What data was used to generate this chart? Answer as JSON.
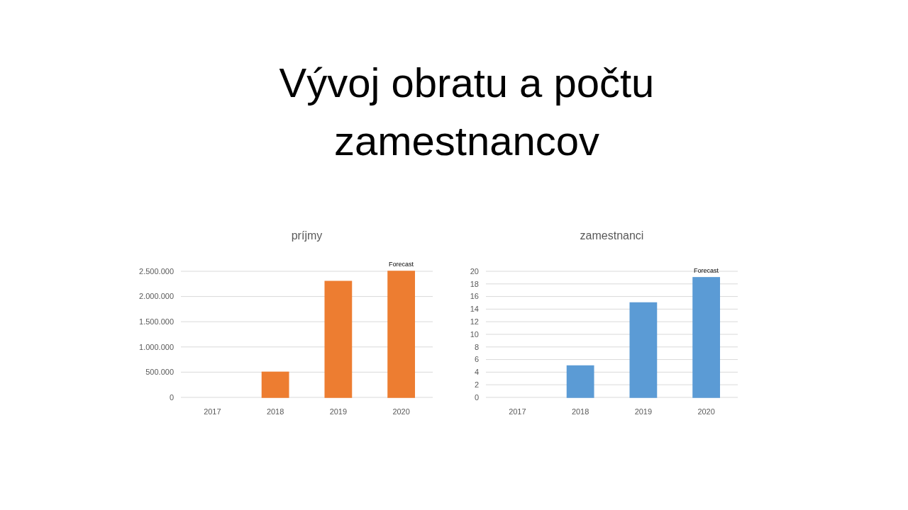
{
  "chart_data": [
    {
      "type": "other",
      "title": "Vývoj obratu a počtu zamestnancov"
    },
    {
      "type": "bar",
      "title": "príjmy",
      "categories": [
        "2017",
        "2018",
        "2019",
        "2020"
      ],
      "values": [
        0,
        500000,
        2300000,
        2500000
      ],
      "color": "#ed7d31",
      "ylim": [
        0,
        2500000
      ],
      "yticks": [
        0,
        {
          "value": 500000,
          "label": "500.000"
        },
        {
          "value": 1000000,
          "label": "1.000.000"
        },
        {
          "value": 1500000,
          "label": "1.500.000"
        },
        {
          "value": 2000000,
          "label": "2.000.000"
        },
        {
          "value": 2500000,
          "label": "2.500.000"
        }
      ],
      "grid": true,
      "annotations": [
        {
          "text": "Forecast",
          "x": "2020",
          "y": 2500000
        }
      ]
    },
    {
      "type": "bar",
      "title": "zamestnanci",
      "categories": [
        "2017",
        "2018",
        "2019",
        "2020"
      ],
      "values": [
        0,
        5,
        15,
        19
      ],
      "color": "#5b9bd5",
      "ylim": [
        0,
        20
      ],
      "yticks": [
        0,
        2,
        4,
        6,
        8,
        10,
        12,
        14,
        16,
        18,
        20
      ],
      "grid": true,
      "annotations": [
        {
          "text": "Forecast",
          "x": "2020",
          "y": 19
        }
      ]
    }
  ]
}
